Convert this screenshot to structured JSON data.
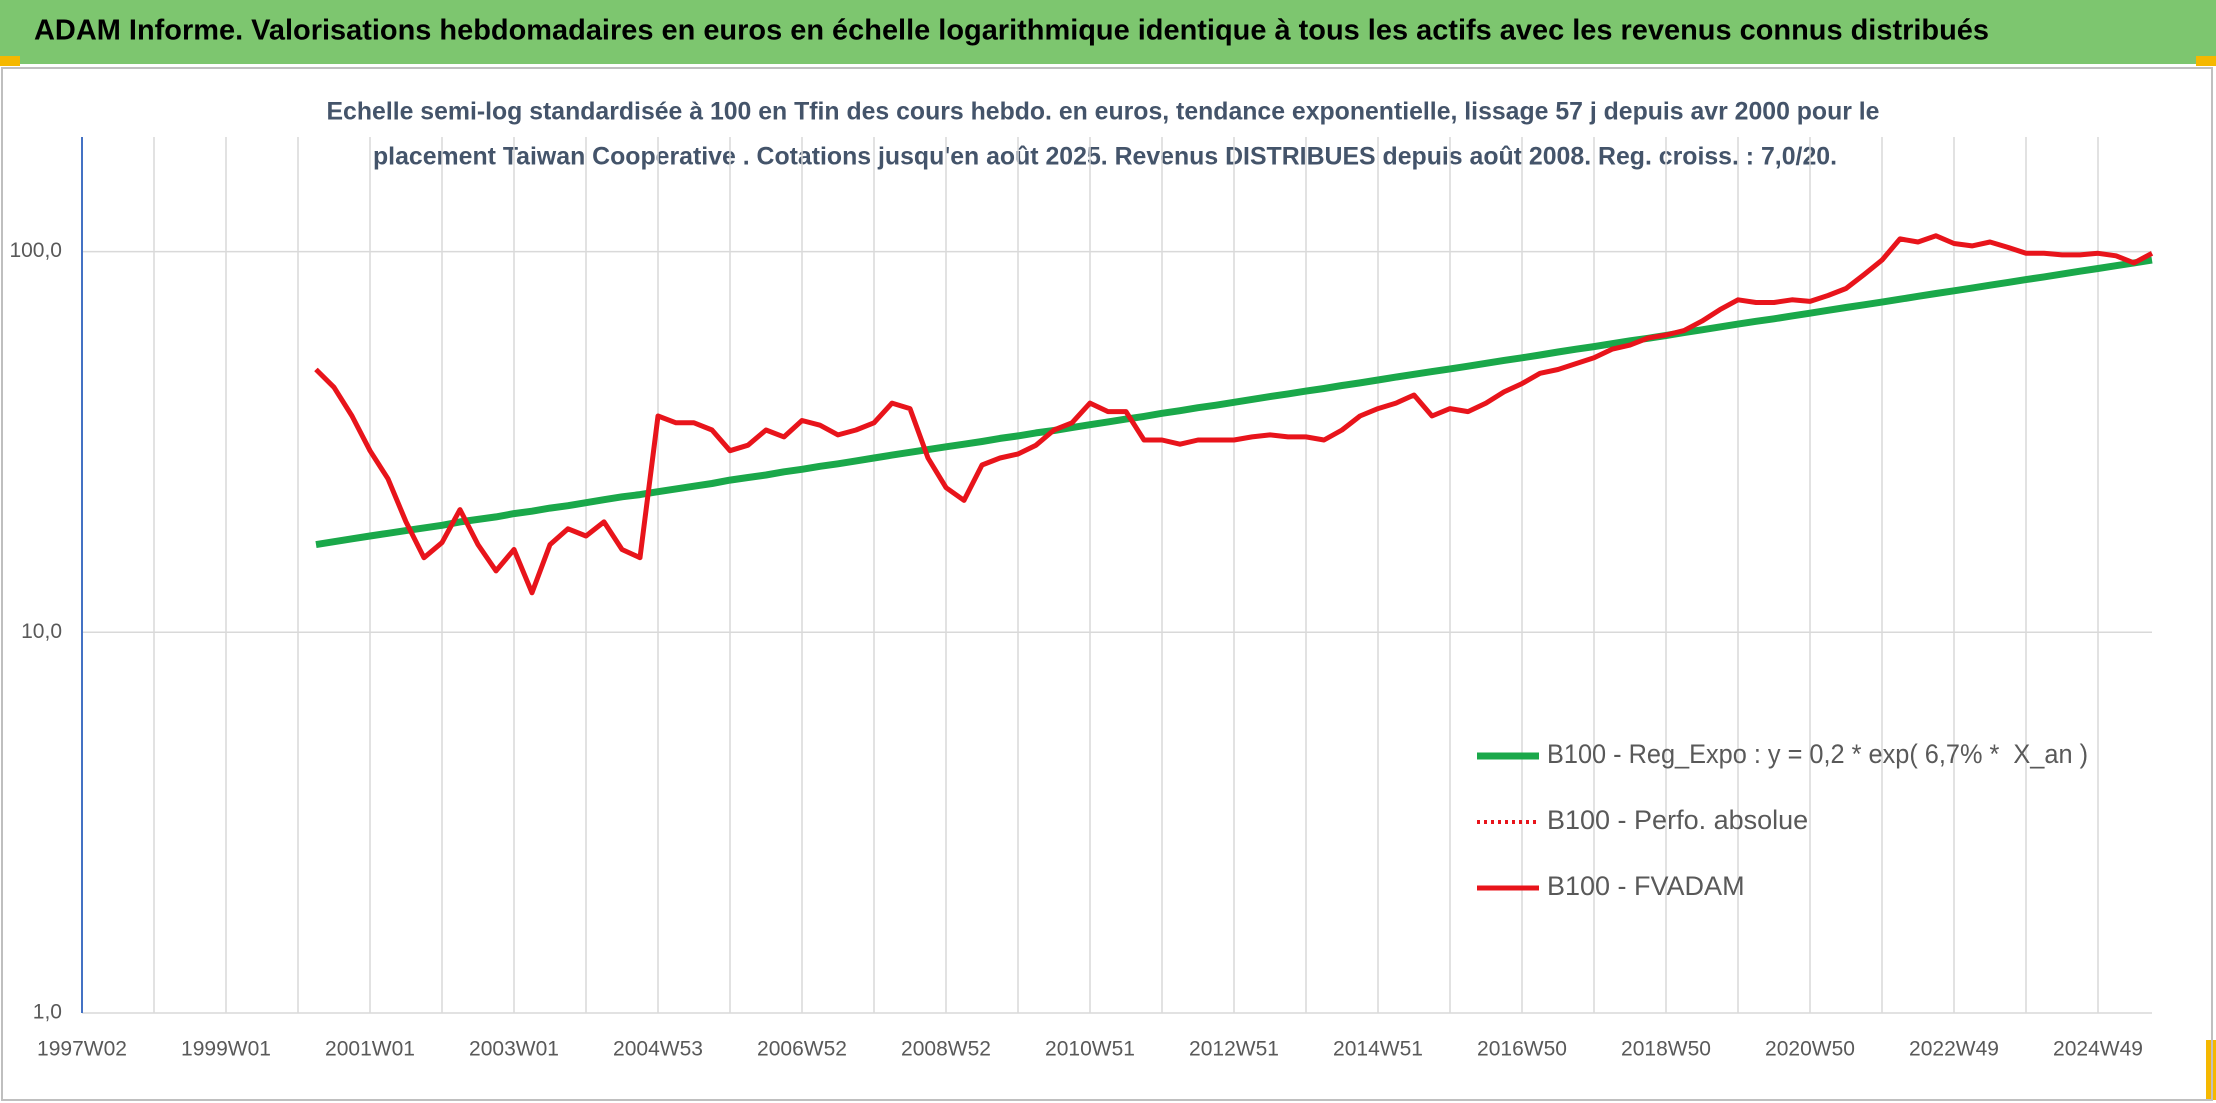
{
  "header": {
    "title": "ADAM Informe. Valorisations hebdomadaires en euros en échelle logarithmique identique à tous les actifs avec les revenus connus distribués"
  },
  "chart_data": {
    "type": "line",
    "subtitle": [
      "Echelle semi-log standardisée à 100 en Tfin des cours hebdo. en euros, tendance exponentielle, lissage 57 j depuis avr 2000 pour le",
      "placement Taiwan Cooperative . Cotations jusqu'en août 2025. Revenus DISTRIBUES depuis août 2008. Reg. croiss. : 7,0/20."
    ],
    "log_scale": true,
    "grid": true,
    "legend": "lower right",
    "ylim": [
      1,
      200
    ],
    "yticks": [
      {
        "value": 1,
        "label": "1,0"
      },
      {
        "value": 10,
        "label": "10,0"
      },
      {
        "value": 100,
        "label": "100,0"
      }
    ],
    "categories": [
      "1997W02",
      null,
      null,
      null,
      null,
      null,
      null,
      null,
      "1999W01",
      null,
      null,
      null,
      null,
      null,
      null,
      null,
      "2001W01",
      null,
      null,
      null,
      null,
      null,
      null,
      null,
      "2003W01",
      null,
      null,
      null,
      null,
      null,
      null,
      null,
      "2004W53",
      null,
      null,
      null,
      null,
      null,
      null,
      null,
      "2006W52",
      null,
      null,
      null,
      null,
      null,
      null,
      null,
      "2008W52",
      null,
      null,
      null,
      null,
      null,
      null,
      null,
      "2010W51",
      null,
      null,
      null,
      null,
      null,
      null,
      null,
      "2012W51",
      null,
      null,
      null,
      null,
      null,
      null,
      null,
      "2014W51",
      null,
      null,
      null,
      null,
      null,
      null,
      null,
      "2016W50",
      null,
      null,
      null,
      null,
      null,
      null,
      null,
      "2018W50",
      null,
      null,
      null,
      null,
      null,
      null,
      null,
      "2020W50",
      null,
      null,
      null,
      null,
      null,
      null,
      null,
      "2022W49",
      null,
      null,
      null,
      null,
      null,
      null,
      null,
      "2024W49",
      null,
      null,
      null
    ],
    "series": [
      {
        "name": "B100 - Reg_Expo : y = 0,2 * exp( 6,7% *  X_an )",
        "color": "#1aa84a",
        "dash": "solid",
        "width": 7,
        "values": [
          null,
          null,
          null,
          null,
          null,
          null,
          null,
          null,
          null,
          null,
          null,
          null,
          null,
          17.0,
          17.3,
          17.6,
          17.9,
          18.2,
          18.5,
          18.8,
          19.1,
          19.5,
          19.8,
          20.1,
          20.5,
          20.8,
          21.2,
          21.5,
          21.9,
          22.3,
          22.7,
          23.0,
          23.4,
          23.8,
          24.2,
          24.6,
          25.1,
          25.5,
          25.9,
          26.4,
          26.8,
          27.3,
          27.7,
          28.2,
          28.7,
          29.2,
          29.7,
          30.2,
          30.7,
          31.2,
          31.7,
          32.3,
          32.8,
          33.4,
          33.9,
          34.5,
          35.1,
          35.7,
          36.3,
          36.9,
          37.6,
          38.2,
          38.9,
          39.5,
          40.2,
          40.9,
          41.6,
          42.3,
          43.0,
          43.7,
          44.5,
          45.2,
          46.0,
          46.8,
          47.6,
          48.4,
          49.2,
          50.0,
          50.9,
          51.8,
          52.6,
          53.5,
          54.5,
          55.4,
          56.3,
          57.3,
          58.3,
          59.2,
          60.2,
          61.3,
          62.3,
          63.4,
          64.5,
          65.6,
          66.6,
          67.8,
          68.9,
          70.1,
          71.3,
          72.5,
          73.7,
          75.0,
          76.3,
          77.6,
          78.9,
          80.2,
          81.6,
          83.0,
          84.4,
          85.8,
          87.3,
          88.8,
          90.3,
          91.8,
          93.4,
          95.0
        ]
      },
      {
        "name": "B100 - Perfo. absolue",
        "color": "#e8141b",
        "dash": "dotted",
        "width": 4,
        "values": [
          null,
          null,
          null,
          null,
          null,
          null,
          null,
          null,
          null,
          null,
          null,
          null,
          null,
          49,
          44,
          37,
          30,
          25.3,
          19.5,
          15.7,
          17.2,
          21,
          17,
          14.5,
          16.5,
          12.7,
          17,
          18.7,
          17.9,
          19.5,
          16.5,
          15.7,
          37,
          35.5,
          35.5,
          34,
          30,
          31,
          34,
          32.6,
          36,
          35,
          33,
          34,
          35.5,
          40,
          38.7,
          28.7,
          24,
          22.2,
          27.5,
          28.7,
          29.4,
          31,
          34,
          35.5,
          40,
          38,
          38,
          32,
          32,
          31.2,
          32,
          32,
          32,
          32.6,
          33,
          32.6,
          32.6,
          32,
          34,
          37,
          38.7,
          40,
          42,
          37,
          38.7,
          38,
          40,
          42.8,
          45,
          47.9,
          49,
          50.8,
          52.6,
          55.4,
          56.8,
          59.3,
          60.4,
          62,
          65.7,
          70.4,
          74.7,
          73.5,
          73.5,
          74.7,
          74,
          76.7,
          80,
          87,
          95,
          108,
          106,
          110,
          105,
          103.5,
          106,
          102.6,
          99,
          99,
          98,
          98,
          99,
          97.5,
          93.4,
          99
        ]
      },
      {
        "name": "B100 - FVADAM",
        "color": "#e8141b",
        "dash": "solid",
        "width": 5,
        "values": [
          null,
          null,
          null,
          null,
          null,
          null,
          null,
          null,
          null,
          null,
          null,
          null,
          null,
          49,
          44,
          37,
          30,
          25.3,
          19.5,
          15.7,
          17.2,
          21,
          17,
          14.5,
          16.5,
          12.7,
          17,
          18.7,
          17.9,
          19.5,
          16.5,
          15.7,
          37,
          35.5,
          35.5,
          34,
          30,
          31,
          34,
          32.6,
          36,
          35,
          33,
          34,
          35.5,
          40,
          38.7,
          28.7,
          24,
          22.2,
          27.5,
          28.7,
          29.4,
          31,
          34,
          35.5,
          40,
          38,
          38,
          32,
          32,
          31.2,
          32,
          32,
          32,
          32.6,
          33,
          32.6,
          32.6,
          32,
          34,
          37,
          38.7,
          40,
          42,
          37,
          38.7,
          38,
          40,
          42.8,
          45,
          47.9,
          49,
          50.8,
          52.6,
          55.4,
          56.8,
          59.3,
          60.4,
          62,
          65.7,
          70.4,
          74.7,
          73.5,
          73.5,
          74.7,
          74,
          76.7,
          80,
          87,
          95,
          108,
          106,
          110,
          105,
          103.5,
          106,
          102.6,
          99,
          99,
          98,
          98,
          99,
          97.5,
          93.4,
          99
        ]
      }
    ]
  }
}
